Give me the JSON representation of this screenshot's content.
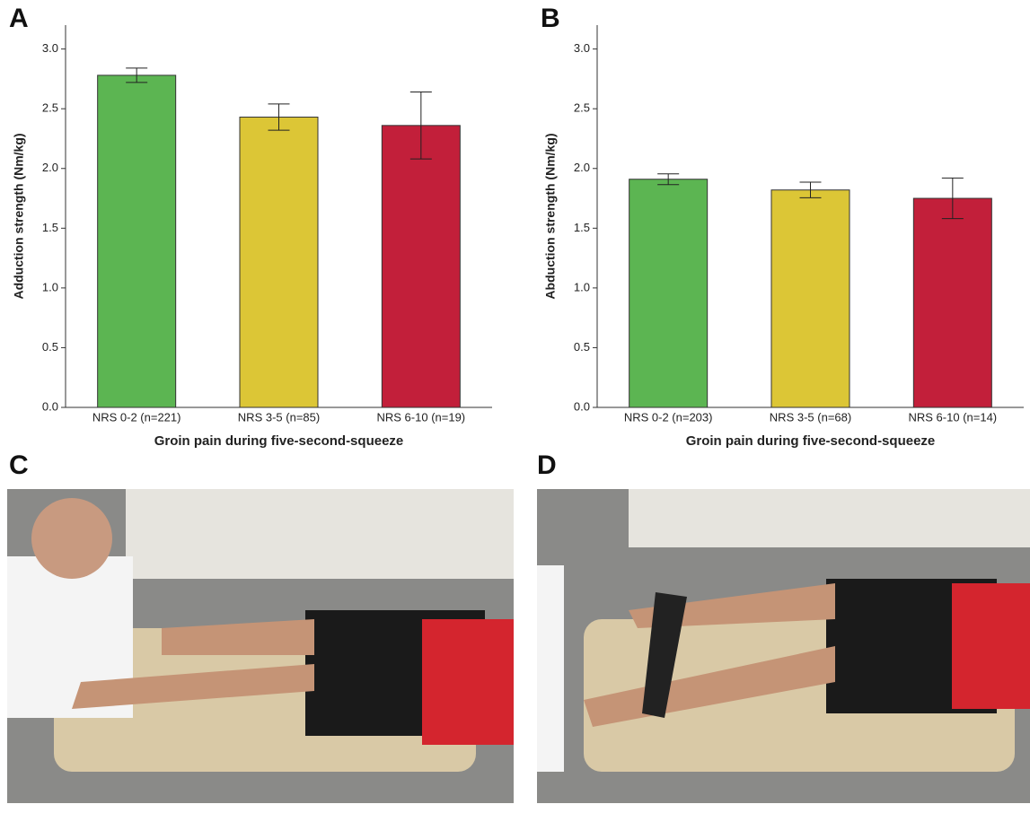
{
  "chart_data": [
    {
      "type": "bar",
      "panel": "A",
      "ylabel": "Adduction strength (Nm/kg)",
      "xlabel": "Groin pain during five-second-squeeze",
      "categories": [
        "NRS 0-2 (n=221)",
        "NRS 3-5 (n=85)",
        "NRS 6-10 (n=19)"
      ],
      "values": [
        2.78,
        2.43,
        2.36
      ],
      "errors": [
        0.06,
        0.11,
        0.28
      ],
      "colors": [
        "#5cb552",
        "#dcc636",
        "#c21f3a"
      ],
      "ylim": [
        0,
        3.2
      ],
      "yticks": [
        {
          "value": 0,
          "label": "0.0"
        },
        0.5,
        {
          "value": 1,
          "label": "1.0"
        },
        1.5,
        {
          "value": 2,
          "label": "2.0"
        },
        2.5,
        {
          "value": 3,
          "label": "3.0"
        }
      ]
    },
    {
      "type": "bar",
      "panel": "B",
      "ylabel": "Abduction strength (Nm/kg)",
      "xlabel": "Groin pain during five-second-squeeze",
      "categories": [
        "NRS 0-2 (n=203)",
        "NRS 3-5 (n=68)",
        "NRS 6-10 (n=14)"
      ],
      "values": [
        1.91,
        1.82,
        1.75
      ],
      "errors": [
        0.045,
        0.065,
        0.17
      ],
      "colors": [
        "#5cb552",
        "#dcc636",
        "#c21f3a"
      ],
      "ylim": [
        0,
        3.2
      ],
      "yticks": [
        {
          "value": 0,
          "label": "0.0"
        },
        0.5,
        {
          "value": 1,
          "label": "1.0"
        },
        1.5,
        {
          "value": 2,
          "label": "2.0"
        },
        2.5,
        {
          "value": 3,
          "label": "3.0"
        }
      ]
    }
  ],
  "photo_panels": [
    {
      "panel": "C"
    },
    {
      "panel": "D"
    }
  ]
}
